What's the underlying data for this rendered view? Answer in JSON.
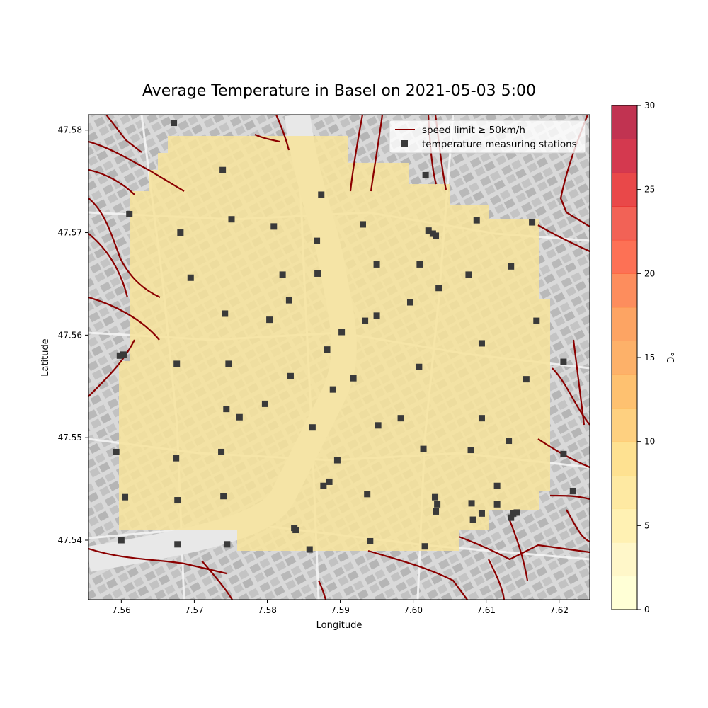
{
  "chart_data": {
    "type": "scatter",
    "title": "Average Temperature in Basel on 2021-05-03 5:00",
    "xlabel": "Longitude",
    "ylabel": "Latitude",
    "xlim": [
      7.5555,
      7.6242
    ],
    "ylim": [
      47.5342,
      47.5815
    ],
    "x_ticks": [
      7.56,
      7.57,
      7.58,
      7.59,
      7.6,
      7.61,
      7.62
    ],
    "y_ticks": [
      47.54,
      47.55,
      47.56,
      47.57,
      47.58
    ],
    "x_tick_labels": [
      "7.56",
      "7.57",
      "7.58",
      "7.59",
      "7.60",
      "7.61",
      "7.62"
    ],
    "y_tick_labels": [
      "47.54",
      "47.55",
      "47.56",
      "47.57",
      "47.58"
    ],
    "grid": false,
    "legend": {
      "placement": "top-right",
      "entries": [
        {
          "label": "speed limit ≥ 50km/h",
          "marker": "line",
          "color": "#8b0000"
        },
        {
          "label": "temperature measuring stations",
          "marker": "square",
          "color": "#3a3a3a"
        }
      ]
    },
    "overlay": {
      "description_color": "#f7e39a",
      "value_celsius_approx": 6
    },
    "colorbar": {
      "label": "°C",
      "min": 0,
      "max": 30,
      "ticks": [
        0,
        5,
        10,
        15,
        20,
        25,
        30
      ],
      "tick_labels": [
        "0",
        "5",
        "10",
        "15",
        "20",
        "25",
        "30"
      ],
      "colors": [
        "#ffffcc",
        "#fff5bb",
        "#ffeda0",
        "#fee38b",
        "#fed976",
        "#fec460",
        "#feb24c",
        "#fd9d43",
        "#fd8d3c",
        "#fc7035",
        "#fc4e2a",
        "#ef3b2c",
        "#e31a1c",
        "#c90823",
        "#b10026"
      ]
    },
    "series": [
      {
        "name": "temperature measuring stations",
        "points": [
          [
            7.5672,
            47.5807
          ],
          [
            7.5739,
            47.5761
          ],
          [
            7.5611,
            47.5718
          ],
          [
            7.5751,
            47.5713
          ],
          [
            7.5681,
            47.57
          ],
          [
            7.5809,
            47.5706
          ],
          [
            7.5931,
            47.5708
          ],
          [
            7.5874,
            47.5737
          ],
          [
            7.5868,
            47.5692
          ],
          [
            7.5695,
            47.5656
          ],
          [
            7.5821,
            47.5659
          ],
          [
            7.5869,
            47.566
          ],
          [
            7.5742,
            47.5621
          ],
          [
            7.583,
            47.5634
          ],
          [
            7.5803,
            47.5615
          ],
          [
            7.5598,
            47.558
          ],
          [
            7.5603,
            47.5581
          ],
          [
            7.5676,
            47.5572
          ],
          [
            7.5747,
            47.5572
          ],
          [
            7.5882,
            47.5586
          ],
          [
            7.5902,
            47.5603
          ],
          [
            7.5934,
            47.5614
          ],
          [
            7.595,
            47.5619
          ],
          [
            7.595,
            47.5669
          ],
          [
            7.6017,
            47.5756
          ],
          [
            7.6021,
            47.5702
          ],
          [
            7.6027,
            47.5699
          ],
          [
            7.6031,
            47.5697
          ],
          [
            7.6009,
            47.5669
          ],
          [
            7.6035,
            47.5646
          ],
          [
            7.5996,
            47.5632
          ],
          [
            7.5832,
            47.556
          ],
          [
            7.589,
            47.5547
          ],
          [
            7.5918,
            47.5558
          ],
          [
            7.6008,
            47.5569
          ],
          [
            7.5593,
            47.5486
          ],
          [
            7.5675,
            47.548
          ],
          [
            7.5737,
            47.5486
          ],
          [
            7.5744,
            47.5528
          ],
          [
            7.5762,
            47.552
          ],
          [
            7.5797,
            47.5533
          ],
          [
            7.5862,
            47.551
          ],
          [
            7.5952,
            47.5512
          ],
          [
            7.5983,
            47.5519
          ],
          [
            7.6014,
            47.5489
          ],
          [
            7.5896,
            47.5478
          ],
          [
            7.5877,
            47.5453
          ],
          [
            7.5885,
            47.5457
          ],
          [
            7.5605,
            47.5442
          ],
          [
            7.5677,
            47.5439
          ],
          [
            7.574,
            47.5443
          ],
          [
            7.5937,
            47.5445
          ],
          [
            7.5837,
            47.5412
          ],
          [
            7.5839,
            47.541
          ],
          [
            7.5858,
            47.5391
          ],
          [
            7.56,
            47.54
          ],
          [
            7.5677,
            47.5396
          ],
          [
            7.5745,
            47.5396
          ],
          [
            7.5941,
            47.5399
          ],
          [
            7.6016,
            47.5394
          ],
          [
            7.603,
            47.5442
          ],
          [
            7.6033,
            47.5435
          ],
          [
            7.6031,
            47.5428
          ],
          [
            7.6079,
            47.5488
          ],
          [
            7.6094,
            47.5519
          ],
          [
            7.608,
            47.5436
          ],
          [
            7.6082,
            47.542
          ],
          [
            7.6094,
            47.5426
          ],
          [
            7.6115,
            47.5435
          ],
          [
            7.6115,
            47.5453
          ],
          [
            7.6131,
            47.5497
          ],
          [
            7.6137,
            47.5426
          ],
          [
            7.6142,
            47.5427
          ],
          [
            7.6134,
            47.5422
          ],
          [
            7.6094,
            47.5592
          ],
          [
            7.6076,
            47.5659
          ],
          [
            7.6134,
            47.5667
          ],
          [
            7.6087,
            47.5712
          ],
          [
            7.6163,
            47.571
          ],
          [
            7.6155,
            47.5557
          ],
          [
            7.6169,
            47.5614
          ],
          [
            7.6206,
            47.5574
          ],
          [
            7.6206,
            47.5484
          ],
          [
            7.6219,
            47.5448
          ]
        ]
      }
    ]
  }
}
